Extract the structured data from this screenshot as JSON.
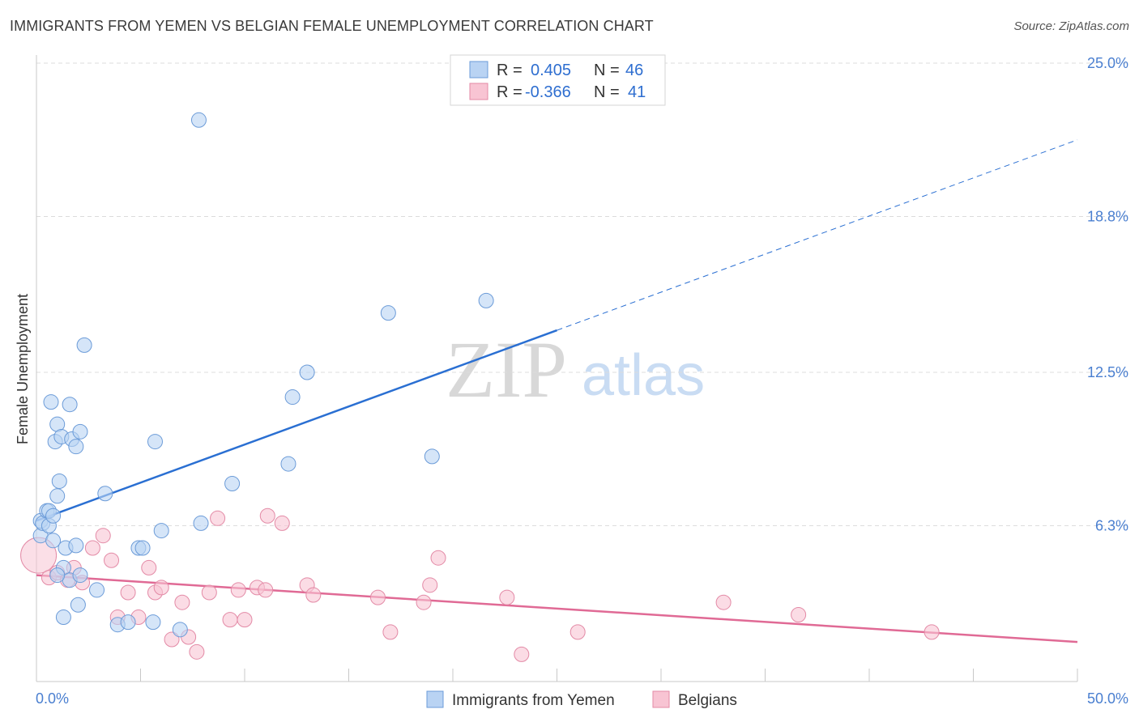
{
  "header": {
    "title": "IMMIGRANTS FROM YEMEN VS BELGIAN FEMALE UNEMPLOYMENT CORRELATION CHART",
    "source": "Source: ZipAtlas.com"
  },
  "watermark": {
    "zip": "ZIP",
    "atlas": "atlas"
  },
  "legend_top": {
    "rows": [
      {
        "r_label": "R = ",
        "r_value": "0.405",
        "n_label": "N = ",
        "n_value": "46",
        "color": "#a9c8ef"
      },
      {
        "r_label": "R = ",
        "r_value": "-0.366",
        "n_label": "N = ",
        "n_value": "41",
        "color": "#f6b9cb"
      }
    ]
  },
  "colors": {
    "blue_fill": "#b9d3f3",
    "blue_stroke": "#6b9bd8",
    "blue_line": "#2a6fd2",
    "pink_fill": "#f8c4d3",
    "pink_stroke": "#e38aa6",
    "pink_line": "#e06a95",
    "accent_text": "#2e6ed0"
  },
  "chart_data": {
    "type": "scatter",
    "title": "IMMIGRANTS FROM YEMEN VS BELGIAN FEMALE UNEMPLOYMENT CORRELATION CHART",
    "xlabel": "",
    "ylabel": "Female Unemployment",
    "xlim": [
      0,
      50
    ],
    "ylim": [
      0,
      25
    ],
    "x_tick_labels": [
      "0.0%",
      "50.0%"
    ],
    "y_ticks": [
      6.3,
      12.5,
      18.8,
      25.0
    ],
    "y_tick_labels": [
      "6.3%",
      "12.5%",
      "18.8%",
      "25.0%"
    ],
    "grid": true,
    "legend_position": "bottom",
    "series": [
      {
        "name": "Immigrants from Yemen",
        "R": 0.405,
        "N": 46,
        "points": [
          [
            0.2,
            6.5
          ],
          [
            0.2,
            5.9
          ],
          [
            0.3,
            6.4
          ],
          [
            0.5,
            6.9
          ],
          [
            0.6,
            6.9
          ],
          [
            0.6,
            6.3
          ],
          [
            0.7,
            11.3
          ],
          [
            0.8,
            6.7
          ],
          [
            0.8,
            5.7
          ],
          [
            0.9,
            9.7
          ],
          [
            1.0,
            10.4
          ],
          [
            1.0,
            7.5
          ],
          [
            1.1,
            8.1
          ],
          [
            1.2,
            9.9
          ],
          [
            1.3,
            2.6
          ],
          [
            1.3,
            4.6
          ],
          [
            1.4,
            5.4
          ],
          [
            1.6,
            11.2
          ],
          [
            1.6,
            4.1
          ],
          [
            1.7,
            9.8
          ],
          [
            1.9,
            9.5
          ],
          [
            1.9,
            5.5
          ],
          [
            2.0,
            3.1
          ],
          [
            2.1,
            10.1
          ],
          [
            2.1,
            4.3
          ],
          [
            2.3,
            13.6
          ],
          [
            2.9,
            3.7
          ],
          [
            3.3,
            7.6
          ],
          [
            3.9,
            2.3
          ],
          [
            4.4,
            2.4
          ],
          [
            4.9,
            5.4
          ],
          [
            5.1,
            5.4
          ],
          [
            5.6,
            2.4
          ],
          [
            5.7,
            9.7
          ],
          [
            6.0,
            6.1
          ],
          [
            6.9,
            2.1
          ],
          [
            7.8,
            22.7
          ],
          [
            7.9,
            6.4
          ],
          [
            9.4,
            8.0
          ],
          [
            12.1,
            8.8
          ],
          [
            12.3,
            11.5
          ],
          [
            13.0,
            12.5
          ],
          [
            16.9,
            14.9
          ],
          [
            19.0,
            9.1
          ],
          [
            21.6,
            15.4
          ],
          [
            1.0,
            4.3
          ]
        ],
        "trend": {
          "x0": 0,
          "y0": 6.5,
          "x_solid_end": 25,
          "x1": 50,
          "y1": 21.9
        }
      },
      {
        "name": "Belgians",
        "R": -0.366,
        "N": 41,
        "points": [
          [
            0.1,
            5.1
          ],
          [
            0.6,
            4.2
          ],
          [
            1.0,
            4.4
          ],
          [
            1.5,
            4.1
          ],
          [
            1.8,
            4.6
          ],
          [
            2.2,
            4.0
          ],
          [
            2.7,
            5.4
          ],
          [
            3.2,
            5.9
          ],
          [
            3.6,
            4.9
          ],
          [
            3.9,
            2.6
          ],
          [
            4.4,
            3.6
          ],
          [
            4.9,
            2.6
          ],
          [
            5.4,
            4.6
          ],
          [
            5.7,
            3.6
          ],
          [
            6.0,
            3.8
          ],
          [
            6.5,
            1.7
          ],
          [
            7.0,
            3.2
          ],
          [
            7.3,
            1.8
          ],
          [
            7.7,
            1.2
          ],
          [
            8.3,
            3.6
          ],
          [
            8.7,
            6.6
          ],
          [
            9.3,
            2.5
          ],
          [
            9.7,
            3.7
          ],
          [
            10.0,
            2.5
          ],
          [
            10.6,
            3.8
          ],
          [
            11.0,
            3.7
          ],
          [
            11.1,
            6.7
          ],
          [
            11.8,
            6.4
          ],
          [
            13.0,
            3.9
          ],
          [
            13.3,
            3.5
          ],
          [
            16.4,
            3.4
          ],
          [
            17.0,
            2.0
          ],
          [
            18.6,
            3.2
          ],
          [
            18.9,
            3.9
          ],
          [
            19.3,
            5.0
          ],
          [
            22.6,
            3.4
          ],
          [
            23.3,
            1.1
          ],
          [
            26.0,
            2.0
          ],
          [
            33.0,
            3.2
          ],
          [
            36.6,
            2.7
          ],
          [
            43.0,
            2.0
          ]
        ],
        "trend": {
          "x0": 0,
          "y0": 4.3,
          "x1": 50,
          "y1": 1.6
        }
      }
    ]
  },
  "legend_bottom": {
    "items": [
      {
        "label": "Immigrants from Yemen",
        "color": "#b9d3f3"
      },
      {
        "label": "Belgians",
        "color": "#f8c4d3"
      }
    ]
  }
}
